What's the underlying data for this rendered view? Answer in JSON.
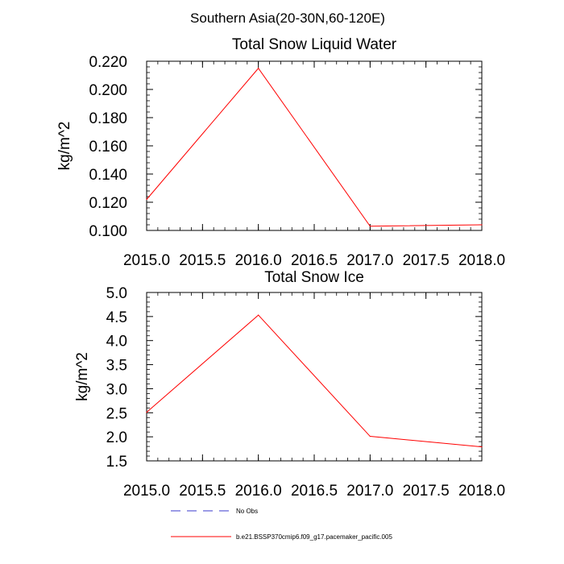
{
  "figure_title": "Southern Asia(20-30N,60-120E)",
  "legend": {
    "entries": [
      {
        "label": "No Obs",
        "color": "#3a3acc",
        "style": "dashed"
      },
      {
        "label": "b.e21.BSSP370cmip6.f09_g17.pacemaker_pacific.005",
        "color": "#ff0000",
        "style": "solid"
      }
    ]
  },
  "chart_data": [
    {
      "type": "line",
      "title": "Total Snow Liquid Water",
      "xlabel": "",
      "ylabel": "kg/m^2",
      "xlim": [
        2015.0,
        2018.0
      ],
      "ylim": [
        0.1,
        0.22
      ],
      "x_ticks": [
        "2015.0",
        "2015.5",
        "2016.0",
        "2016.5",
        "2017.0",
        "2017.5",
        "2018.0"
      ],
      "y_ticks": [
        "0.100",
        "0.120",
        "0.140",
        "0.160",
        "0.180",
        "0.200",
        "0.220"
      ],
      "y_tick_values": [
        0.1,
        0.12,
        0.14,
        0.16,
        0.18,
        0.2,
        0.22
      ],
      "grid": false,
      "series": [
        {
          "name": "b.e21.BSSP370cmip6.f09_g17.pacemaker_pacific.005",
          "color": "#ff0000",
          "x": [
            2015.0,
            2016.0,
            2017.0,
            2018.0
          ],
          "y": [
            0.122,
            0.215,
            0.103,
            0.104
          ]
        }
      ]
    },
    {
      "type": "line",
      "title": "Total Snow Ice",
      "xlabel": "",
      "ylabel": "kg/m^2",
      "xlim": [
        2015.0,
        2018.0
      ],
      "ylim": [
        1.5,
        5.0
      ],
      "x_ticks": [
        "2015.0",
        "2015.5",
        "2016.0",
        "2016.5",
        "2017.0",
        "2017.5",
        "2018.0"
      ],
      "y_ticks": [
        "1.5",
        "2.0",
        "2.5",
        "3.0",
        "3.5",
        "4.0",
        "4.5",
        "5.0"
      ],
      "y_tick_values": [
        1.5,
        2.0,
        2.5,
        3.0,
        3.5,
        4.0,
        4.5,
        5.0
      ],
      "grid": false,
      "series": [
        {
          "name": "b.e21.BSSP370cmip6.f09_g17.pacemaker_pacific.005",
          "color": "#ff0000",
          "x": [
            2015.0,
            2016.0,
            2017.0,
            2018.0
          ],
          "y": [
            2.51,
            4.53,
            2.01,
            1.79
          ]
        }
      ]
    }
  ]
}
